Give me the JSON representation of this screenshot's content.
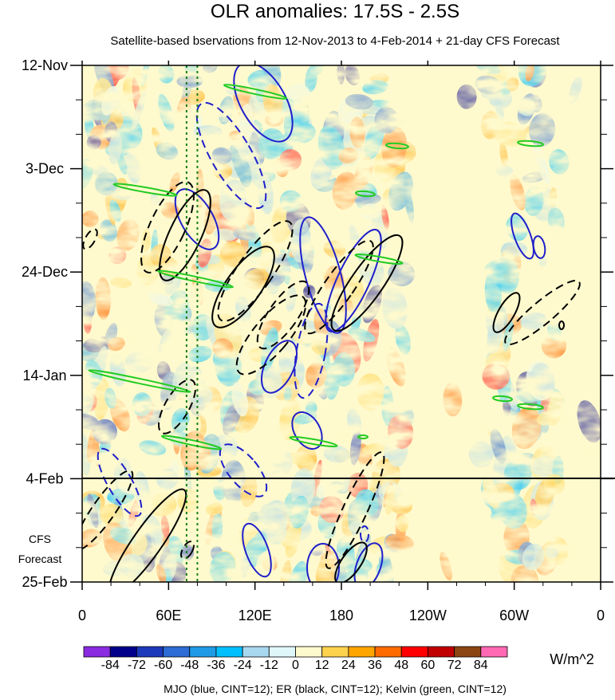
{
  "chart_data": {
    "type": "heatmap",
    "title": "OLR anomalies: 17.5S - 2.5S",
    "subtitle": "Satellite-based bservations from 12-Nov-2013 to 4-Feb-2014 + 21-day CFS Forecast",
    "x_ticks": [
      "0",
      "60E",
      "120E",
      "180",
      "120W",
      "60W",
      "0"
    ],
    "x_range": [
      0,
      360
    ],
    "y_ticks": [
      "12-Nov",
      "3-Dec",
      "24-Dec",
      "14-Jan",
      "4-Feb",
      "25-Feb"
    ],
    "observation_end": "4-Feb",
    "forecast_label_line1": "CFS",
    "forecast_label_line2": "Forecast",
    "colorbar": {
      "levels": [
        "-84",
        "-72",
        "-60",
        "-48",
        "-36",
        "-24",
        "-12",
        "0",
        "12",
        "24",
        "36",
        "48",
        "60",
        "72",
        "84"
      ],
      "colors": [
        "#8a2be2",
        "#00008b",
        "#1c39bb",
        "#2d6bd6",
        "#1f9be6",
        "#00bfff",
        "#a8d8f0",
        "#e0f7fa",
        "#fffacd",
        "#ffd24d",
        "#ffa500",
        "#ff6a00",
        "#ff0000",
        "#c00000",
        "#8b4513",
        "#ff69b4"
      ],
      "units": "W/m^2"
    },
    "contour_legend": "MJO (blue, CINT=12); ER (black, CINT=12); Kelvin (green, CINT=12)",
    "colors": {
      "mjo": "#1f1fcc",
      "er": "#000000",
      "kelvin": "#22cc22",
      "reference_line": "#1a7f1a"
    },
    "reference_longitudes": [
      72.5,
      80
    ]
  }
}
